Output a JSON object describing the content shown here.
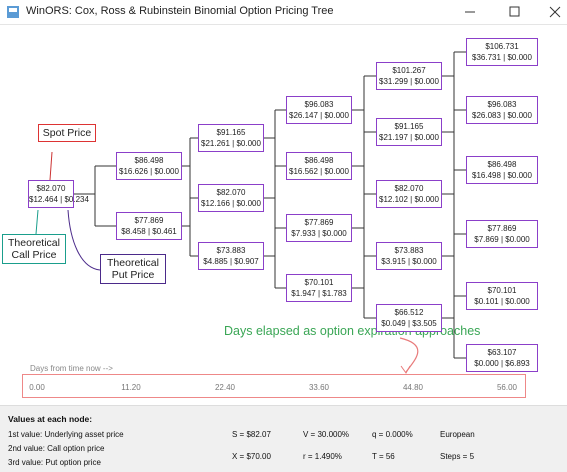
{
  "window": {
    "title": "WinORS: Cox, Ross & Rubinstein Binomial Option Pricing Tree"
  },
  "tree": {
    "steps": [
      [
        {
          "price": "$82.070",
          "values": "$12.464 | $0.234"
        }
      ],
      [
        {
          "price": "$86.498",
          "values": "$16.626 | $0.000"
        },
        {
          "price": "$77.869",
          "values": "$8.458 | $0.461"
        }
      ],
      [
        {
          "price": "$91.165",
          "values": "$21.261 | $0.000"
        },
        {
          "price": "$82.070",
          "values": "$12.166 | $0.000"
        },
        {
          "price": "$73.883",
          "values": "$4.885 | $0.907"
        }
      ],
      [
        {
          "price": "$96.083",
          "values": "$26.147 | $0.000"
        },
        {
          "price": "$86.498",
          "values": "$16.562 | $0.000"
        },
        {
          "price": "$77.869",
          "values": "$7.933 | $0.000"
        },
        {
          "price": "$70.101",
          "values": "$1.947 | $1.783"
        }
      ],
      [
        {
          "price": "$101.267",
          "values": "$31.299 | $0.000"
        },
        {
          "price": "$91.165",
          "values": "$21.197 | $0.000"
        },
        {
          "price": "$82.070",
          "values": "$12.102 | $0.000"
        },
        {
          "price": "$73.883",
          "values": "$3.915 | $0.000"
        },
        {
          "price": "$66.512",
          "values": "$0.049 | $3.505"
        }
      ],
      [
        {
          "price": "$106.731",
          "values": "$36.731 | $0.000"
        },
        {
          "price": "$96.083",
          "values": "$26.083 | $0.000"
        },
        {
          "price": "$86.498",
          "values": "$16.498 | $0.000"
        },
        {
          "price": "$77.869",
          "values": "$7.869 | $0.000"
        },
        {
          "price": "$70.101",
          "values": "$0.101 | $0.000"
        },
        {
          "price": "$63.107",
          "values": "$0.000 | $6.893"
        }
      ]
    ]
  },
  "annotations": {
    "spot": "Spot Price",
    "call": "Theoretical Call Price",
    "put": "Theoretical Put Price",
    "days": "Days elapsed as option expiration approaches"
  },
  "timeline": {
    "label": "Days from time now -->",
    "ticks": [
      "0.00",
      "11.20",
      "22.40",
      "33.60",
      "44.80",
      "56.00"
    ]
  },
  "footer": {
    "heading": "Values at each node:",
    "legend": [
      "1st value: Underlying asset price",
      "2nd value: Call option price",
      "3rd value: Put option price"
    ],
    "params": [
      [
        "S = $82.07",
        "V = 30.000%",
        "q = 0.000%",
        "European"
      ],
      [
        "X = $70.00",
        "r = 1.490%",
        "T = 56",
        "Steps = 5"
      ]
    ]
  }
}
